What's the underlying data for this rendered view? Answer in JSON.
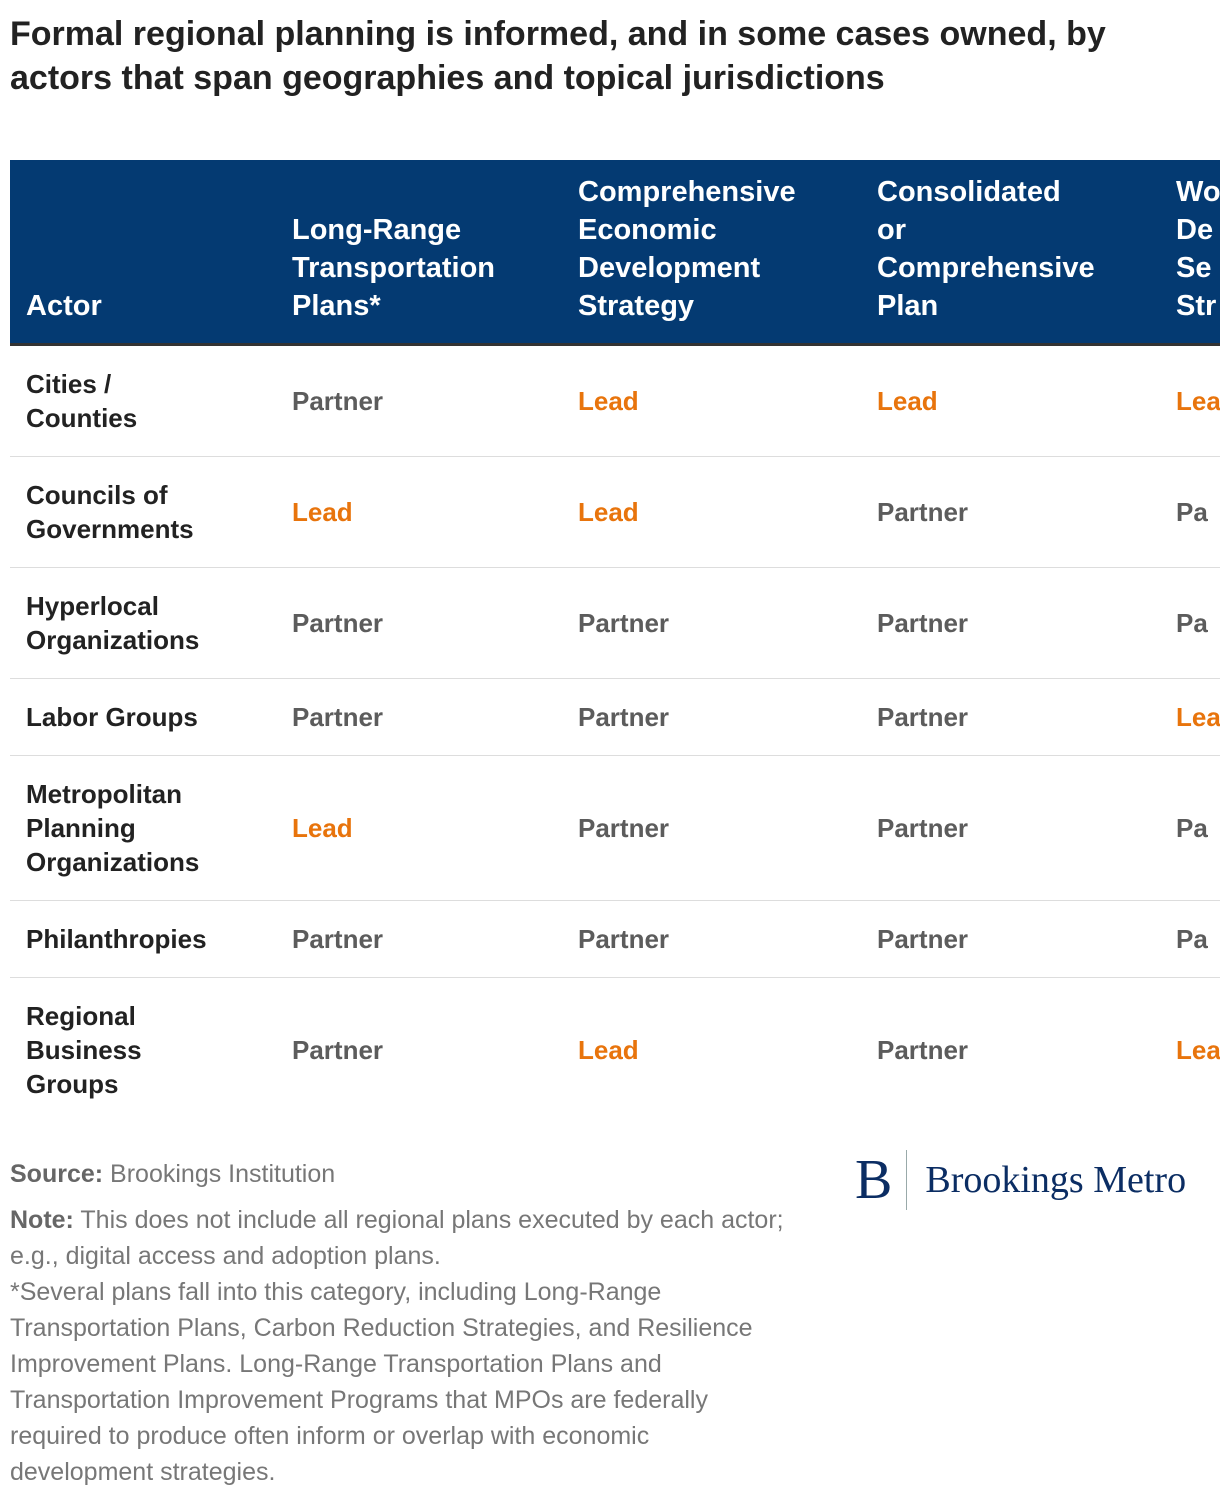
{
  "title": "Formal regional planning is informed, and in some cases owned, by actors that span geographies and topical jurisdictions",
  "table": {
    "header": [
      [
        "Actor"
      ],
      [
        "Long-Range",
        "Transportation",
        "Plans*"
      ],
      [
        "Comprehensive",
        "Economic",
        "Development",
        "Strategy"
      ],
      [
        "Consolidated",
        "or",
        "Comprehensive",
        "Plan"
      ],
      [
        "Wo",
        "De",
        "Se",
        "Str"
      ]
    ],
    "rows": [
      {
        "actor": [
          "Cities /",
          "Counties"
        ],
        "cells": [
          "Partner",
          "Lead",
          "Lead",
          "Lea"
        ]
      },
      {
        "actor": [
          "Councils of",
          "Governments"
        ],
        "cells": [
          "Lead",
          "Lead",
          "Partner",
          "Pa"
        ]
      },
      {
        "actor": [
          "Hyperlocal",
          "Organizations"
        ],
        "cells": [
          "Partner",
          "Partner",
          "Partner",
          "Pa"
        ]
      },
      {
        "actor": [
          "Labor Groups"
        ],
        "cells": [
          "Partner",
          "Partner",
          "Partner",
          "Lea"
        ]
      },
      {
        "actor": [
          "Metropolitan",
          "Planning",
          "Organizations"
        ],
        "cells": [
          "Lead",
          "Partner",
          "Partner",
          "Pa"
        ]
      },
      {
        "actor": [
          "Philanthropies"
        ],
        "cells": [
          "Partner",
          "Partner",
          "Partner",
          "Pa"
        ]
      },
      {
        "actor": [
          "Regional",
          "Business",
          "Groups"
        ],
        "cells": [
          "Partner",
          "Lead",
          "Partner",
          "Lea"
        ]
      }
    ]
  },
  "footer": {
    "source_label": "Source:",
    "source": "Brookings Institution",
    "note_label": "Note:",
    "note": "This does not include all regional plans executed by each actor; e.g., digital access and adoption plans.",
    "footnote": "*Several plans fall into this category, including Long-Range Transportation Plans, Carbon Reduction Strategies, and Resilience Improvement Plans. Long-Range Transportation Plans and Transportation Improvement Programs that MPOs are federally required to produce often inform or overlap with economic development strategies.",
    "logo_mark": "B",
    "logo_text": "Brookings Metro"
  }
}
